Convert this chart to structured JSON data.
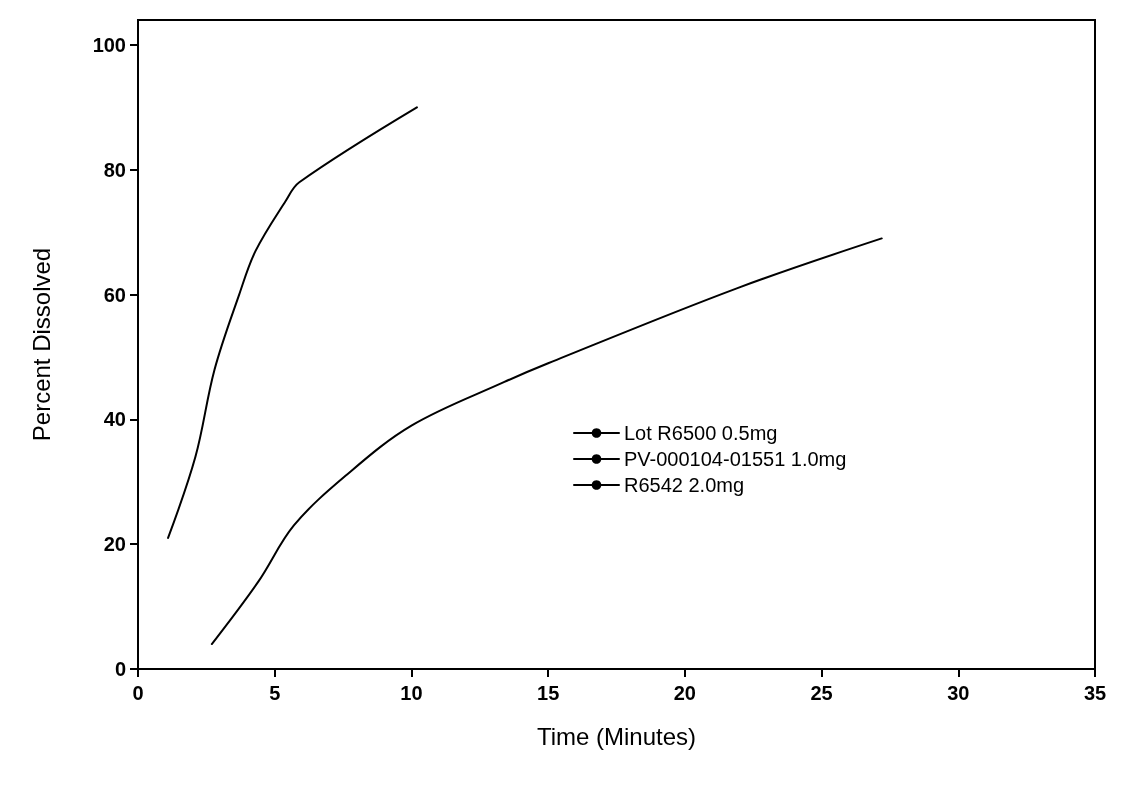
{
  "chart_data": {
    "type": "line",
    "xlabel": "Time (Minutes)",
    "ylabel": "Percent Dissolved",
    "xlim": [
      0,
      35
    ],
    "xticks": [
      0,
      5,
      10,
      15,
      20,
      25,
      30,
      35
    ],
    "ylim": [
      0,
      104
    ],
    "yticks": [
      0,
      20,
      40,
      60,
      80,
      100
    ],
    "grid": false,
    "legend": "center right",
    "line_style": "solid",
    "series": [
      {
        "name": "Lot R6500 0.5mg",
        "color": "#000000",
        "x": [
          1.1,
          2.1,
          2.8,
          3.7,
          4.3,
          5.4,
          5.9,
          10.2
        ],
        "values": [
          21,
          34,
          48,
          60,
          67,
          75,
          78,
          90
        ]
      },
      {
        "name": "PV-000104-01551 1.0mg",
        "color": "#000000",
        "x": [
          2.7,
          4.4,
          5.7,
          7.6,
          10,
          13.4,
          15,
          21.9,
          27.2
        ],
        "values": [
          4,
          14,
          23,
          31,
          39,
          46,
          49,
          61,
          69
        ]
      },
      {
        "name": "R6542 2.0mg",
        "color": "#000000"
      }
    ]
  }
}
